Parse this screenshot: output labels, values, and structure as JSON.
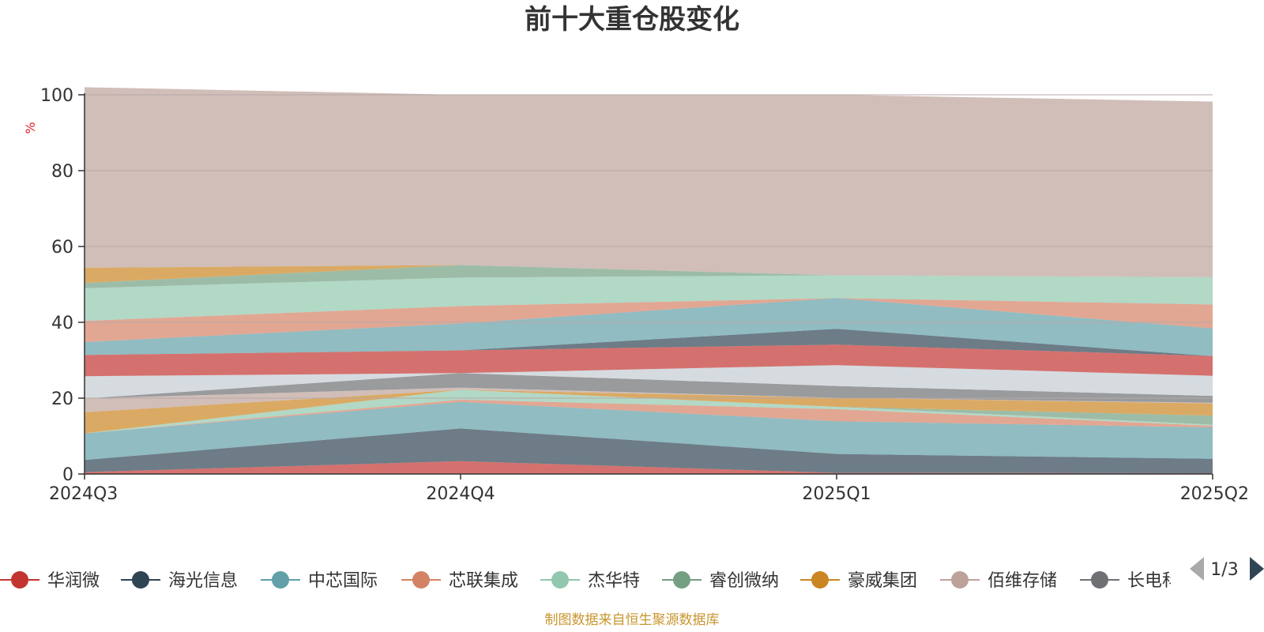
{
  "chart_data": {
    "type": "area",
    "title": "前十大重仓股变化",
    "ylabel": "%",
    "ylim": [
      0,
      100
    ],
    "yticks": [
      "0",
      "20",
      "40",
      "60",
      "80",
      "100"
    ],
    "categories": [
      "2024Q3",
      "2024Q4",
      "2025Q1",
      "2025Q2"
    ],
    "grid": true,
    "stacked": true,
    "legend_position": "bottom",
    "series": [
      {
        "name": "华润微",
        "color": "#c23531",
        "values": [
          0.5,
          3.4,
          0.3,
          0.2
        ]
      },
      {
        "name": "海光信息",
        "color": "#2f4554",
        "values": [
          3.2,
          8.6,
          5.0,
          3.8
        ]
      },
      {
        "name": "中芯国际",
        "color": "#61a0a8",
        "values": [
          7.0,
          7.0,
          8.6,
          8.3
        ]
      },
      {
        "name": "芯联集成",
        "color": "#d48265",
        "values": [
          0.0,
          0.6,
          3.2,
          0.4
        ]
      },
      {
        "name": "杰华特",
        "color": "#91c7ae",
        "values": [
          0.0,
          2.6,
          0.6,
          0.3
        ]
      },
      {
        "name": "睿创微纳",
        "color": "#749f83",
        "values": [
          0.0,
          0.0,
          0.0,
          2.4
        ]
      },
      {
        "name": "豪威集团",
        "color": "#ca8622",
        "values": [
          5.6,
          0.0,
          2.4,
          3.2
        ]
      },
      {
        "name": "佰维存储",
        "color": "#bda29a",
        "values": [
          3.6,
          0.6,
          0.0,
          0.2
        ]
      },
      {
        "name": "长电科技",
        "color": "#6e7074",
        "values": [
          0.0,
          3.8,
          3.1,
          1.8
        ]
      },
      {
        "name": "",
        "color": "#c4ccd3",
        "values": [
          5.9,
          0.0,
          5.5,
          5.3
        ]
      },
      {
        "name": "",
        "color": "#c23531",
        "values": [
          5.6,
          6.0,
          5.4,
          5.2
        ]
      },
      {
        "name": "",
        "color": "#2f4554",
        "values": [
          0.0,
          0.0,
          4.2,
          0.0
        ]
      },
      {
        "name": "",
        "color": "#61a0a8",
        "values": [
          3.4,
          7.1,
          8.1,
          7.3
        ]
      },
      {
        "name": "",
        "color": "#d48265",
        "values": [
          5.6,
          4.6,
          0.0,
          6.3
        ]
      },
      {
        "name": "",
        "color": "#91c7ae",
        "values": [
          8.6,
          7.5,
          6.0,
          7.2
        ]
      },
      {
        "name": "",
        "color": "#749f83",
        "values": [
          1.4,
          3.3,
          0.0,
          0.0
        ]
      },
      {
        "name": "",
        "color": "#ca8622",
        "values": [
          4.0,
          0.0,
          0.0,
          0.0
        ]
      },
      {
        "name": "",
        "color": "#bda29a",
        "values": [
          47.6,
          44.9,
          47.6,
          46.3
        ]
      }
    ]
  },
  "legend": {
    "page": "1/3",
    "visible_items": [
      "华润微",
      "海光信息",
      "中芯国际",
      "芯联集成",
      "杰华特",
      "睿创微纳",
      "豪威集团",
      "佰维存储",
      "长电科"
    ]
  },
  "footer": "制图数据来自恒生聚源数据库"
}
